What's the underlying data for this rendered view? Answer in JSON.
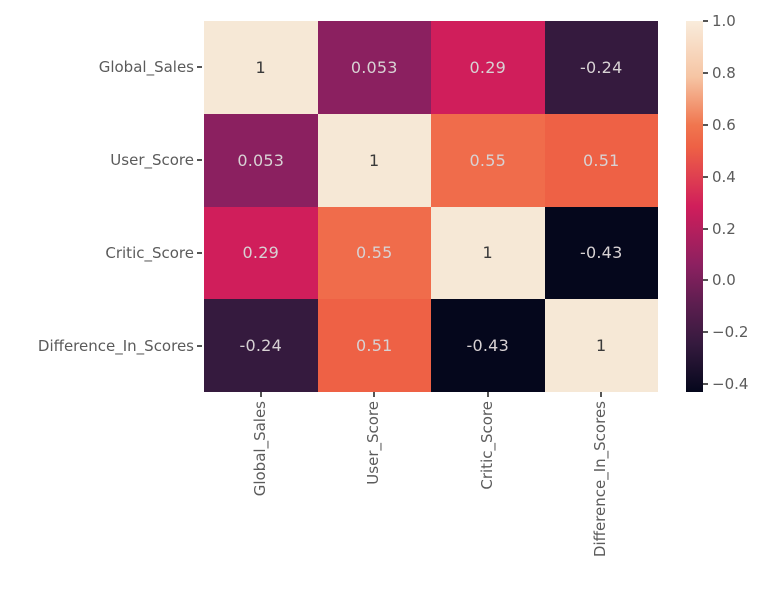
{
  "figure": {
    "background": "#ffffff",
    "axis_label_color": "#5b5b5b",
    "tick_mark_color": "#555555"
  },
  "chart_data": {
    "type": "heatmap",
    "title": "",
    "description": "Correlation matrix heatmap with annotated coefficients",
    "categories": [
      "Global_Sales",
      "User_Score",
      "Critic_Score",
      "Difference_In_Scores"
    ],
    "matrix": [
      [
        1,
        0.053,
        0.29,
        -0.24
      ],
      [
        0.053,
        1,
        0.55,
        0.51
      ],
      [
        0.29,
        0.55,
        1,
        -0.43
      ],
      [
        -0.24,
        0.51,
        -0.43,
        1
      ]
    ],
    "cell_labels": [
      [
        "1",
        "0.053",
        "0.29",
        "-0.24"
      ],
      [
        "0.053",
        "1",
        "0.55",
        "0.51"
      ],
      [
        "0.29",
        "0.55",
        "1",
        "-0.43"
      ],
      [
        "-0.24",
        "0.51",
        "-0.43",
        "1"
      ]
    ],
    "cell_colors": [
      [
        "#f6e8d6",
        "#8b2060",
        "#d01e5b",
        "#351a3e"
      ],
      [
        "#8b2060",
        "#f6e8d6",
        "#f06c4b",
        "#ee6145"
      ],
      [
        "#d01e5b",
        "#f06c4b",
        "#f6e8d6",
        "#05071c"
      ],
      [
        "#351a3e",
        "#ee6145",
        "#05071c",
        "#f6e8d6"
      ]
    ],
    "cell_text_colors": [
      [
        "#3a3a3a",
        "#d8d2d4",
        "#d8d2d4",
        "#d8d2d4"
      ],
      [
        "#d8d2d4",
        "#3a3a3a",
        "#d8d2d4",
        "#d8d2d4"
      ],
      [
        "#d8d2d4",
        "#d8d2d4",
        "#3a3a3a",
        "#d8d2d4"
      ],
      [
        "#d8d2d4",
        "#d8d2d4",
        "#d8d2d4",
        "#3a3a3a"
      ]
    ],
    "colormap": "rocket",
    "vmin": -0.43,
    "vmax": 1.0,
    "legend_position": "right",
    "grid": false,
    "colorbar": {
      "tick_values": [
        1.0,
        0.8,
        0.6,
        0.4,
        0.2,
        0.0,
        -0.2,
        -0.4
      ],
      "tick_labels": [
        "1.0",
        "0.8",
        "0.6",
        "0.4",
        "0.2",
        "0.0",
        "−0.2",
        "−0.4"
      ],
      "gradient_stops": [
        {
          "pos": 0,
          "color": "#f9ecdc"
        },
        {
          "pos": 15,
          "color": "#f6c5a4"
        },
        {
          "pos": 28,
          "color": "#f0764f"
        },
        {
          "pos": 34,
          "color": "#ee6145"
        },
        {
          "pos": 50,
          "color": "#d01e5b"
        },
        {
          "pos": 66,
          "color": "#8b2060"
        },
        {
          "pos": 76,
          "color": "#5e1e50"
        },
        {
          "pos": 87,
          "color": "#351a3e"
        },
        {
          "pos": 100,
          "color": "#05071c"
        }
      ]
    }
  }
}
